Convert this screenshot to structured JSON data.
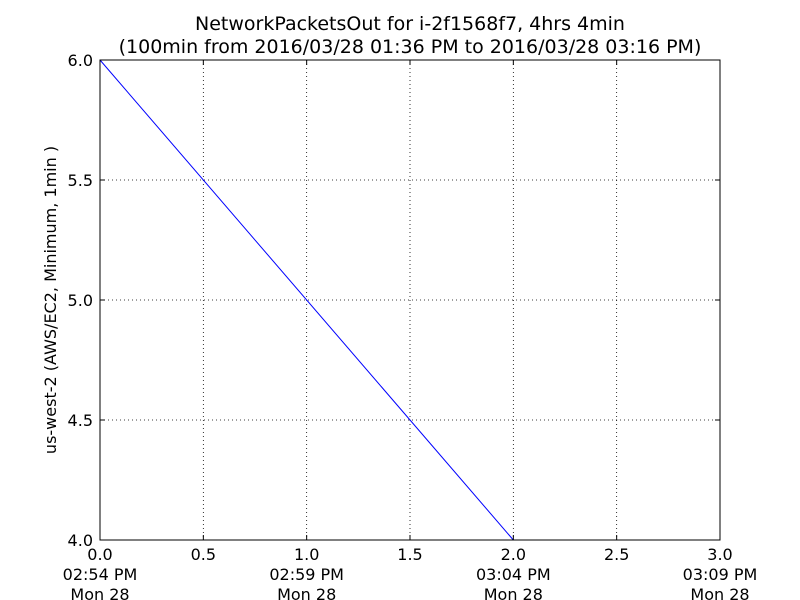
{
  "chart_data": {
    "type": "line",
    "title": "NetworkPacketsOut for i-2f1568f7, 4hrs 4min",
    "subtitle": "(100min from 2016/03/28 01:36 PM to 2016/03/28 03:16 PM)",
    "xlabel": "",
    "ylabel": "us-west-2 (AWS/EC2, Minimum, 1min )",
    "xlim": [
      0.0,
      3.0
    ],
    "ylim": [
      4.0,
      6.0
    ],
    "grid": true,
    "x_ticks": [
      {
        "value": 0.0,
        "label": "0.0",
        "time": "02:54 PM",
        "date": "Mon 28"
      },
      {
        "value": 0.5,
        "label": "0.5",
        "time": "",
        "date": ""
      },
      {
        "value": 1.0,
        "label": "1.0",
        "time": "02:59 PM",
        "date": "Mon 28"
      },
      {
        "value": 1.5,
        "label": "1.5",
        "time": "",
        "date": ""
      },
      {
        "value": 2.0,
        "label": "2.0",
        "time": "03:04 PM",
        "date": "Mon 28"
      },
      {
        "value": 2.5,
        "label": "2.5",
        "time": "",
        "date": ""
      },
      {
        "value": 3.0,
        "label": "3.0",
        "time": "03:09 PM",
        "date": "Mon 28"
      }
    ],
    "y_ticks": [
      {
        "value": 4.0,
        "label": "4.0"
      },
      {
        "value": 4.5,
        "label": "4.5"
      },
      {
        "value": 5.0,
        "label": "5.0"
      },
      {
        "value": 5.5,
        "label": "5.5"
      },
      {
        "value": 6.0,
        "label": "6.0"
      }
    ],
    "series": [
      {
        "color": "#0000ff",
        "x": [
          0.0,
          2.0,
          3.0
        ],
        "y": [
          6.0,
          4.0,
          4.0
        ]
      }
    ]
  }
}
